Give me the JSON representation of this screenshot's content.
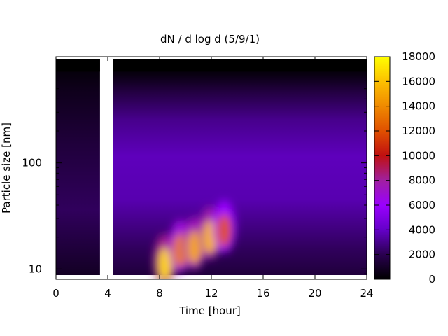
{
  "chart_data": {
    "type": "heatmap",
    "title": "dN / d log d (5/9/1)",
    "xlabel": "Time [hour]",
    "ylabel": "Particle size [nm]",
    "x_ticks": [
      0,
      4,
      8,
      12,
      16,
      20,
      24
    ],
    "xlim": [
      0,
      24
    ],
    "y_scale": "log",
    "y_ticks": [
      {
        "value": 10,
        "label": "10"
      },
      {
        "value": 100,
        "label": "100"
      }
    ],
    "ylim": [
      8,
      1000
    ],
    "colorbar": {
      "min": 0,
      "max": 18000,
      "ticks": [
        0,
        2000,
        4000,
        6000,
        8000,
        10000,
        12000,
        14000,
        16000,
        18000
      ],
      "palette": [
        "#000000",
        "#2a0050",
        "#6400c8",
        "#9a00ff",
        "#a020a0",
        "#c01010",
        "#e05000",
        "#f08a00",
        "#fcc000",
        "#ffff00"
      ]
    },
    "data_gaps_hours": [
      [
        3.4,
        4.4
      ]
    ],
    "peak_events": [
      {
        "time_hour": 8.4,
        "size_nm": 11,
        "value": 16500
      },
      {
        "time_hour": 9.6,
        "size_nm": 15,
        "value": 13500
      },
      {
        "time_hour": 10.7,
        "size_nm": 16,
        "value": 15000
      },
      {
        "time_hour": 11.9,
        "size_nm": 20,
        "value": 15500
      },
      {
        "time_hour": 13.0,
        "size_nm": 23,
        "value": 12000
      }
    ]
  }
}
